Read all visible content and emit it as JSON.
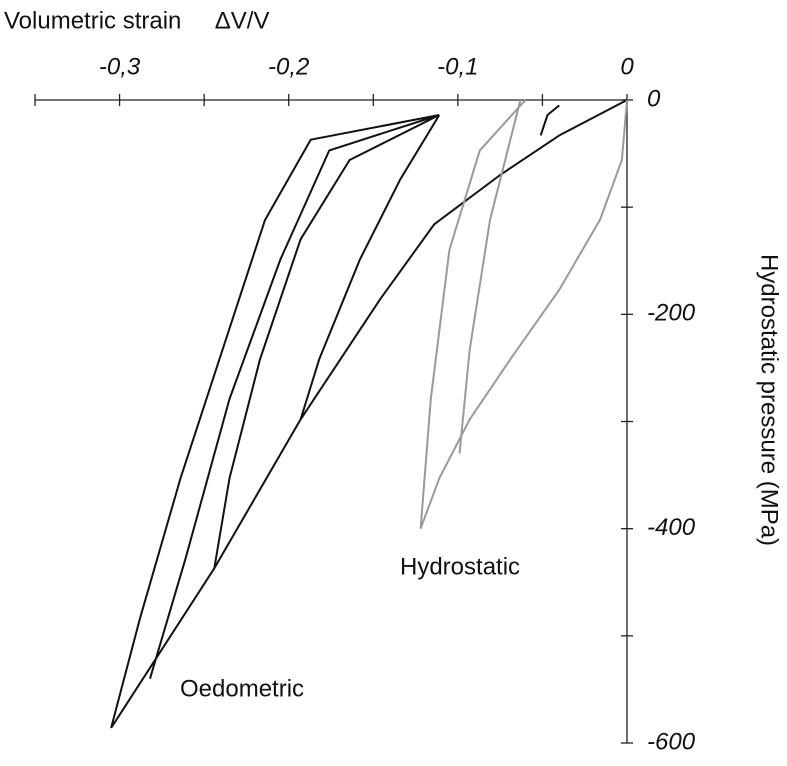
{
  "chart_data": {
    "type": "line",
    "xlabel": "Volumetric strain     ΔV/V",
    "ylabel": "Hydrostatic pressure (MPa)",
    "xlim": [
      -0.35,
      0
    ],
    "ylim": [
      -600,
      0
    ],
    "xticks": [
      {
        "value": -0.3,
        "label": "-0,3"
      },
      {
        "value": -0.2,
        "label": "-0,2"
      },
      {
        "value": -0.1,
        "label": "-0,1"
      },
      0
    ],
    "xminorticks": [
      -0.35,
      -0.25,
      -0.15,
      -0.05
    ],
    "yticks": [
      0,
      -200,
      -400,
      -600
    ],
    "yminorticks": [
      -100,
      -300,
      -500
    ],
    "grid": false,
    "series": [
      {
        "name": "Oedometric",
        "color": "#111111",
        "x": [
          0,
          -0.04,
          -0.075,
          -0.114,
          -0.146,
          -0.193,
          -0.244,
          -0.305,
          null,
          -0.193,
          -0.182,
          -0.158,
          -0.134,
          -0.111,
          null,
          -0.244,
          -0.235,
          -0.217,
          -0.193,
          -0.164,
          -0.111,
          null,
          -0.305,
          -0.288,
          -0.264,
          -0.241,
          -0.214,
          -0.187,
          -0.111,
          null,
          -0.282,
          -0.261,
          -0.235,
          -0.205,
          -0.176,
          -0.111,
          null,
          -0.051,
          -0.047,
          -0.04
        ],
        "y": [
          0,
          -33,
          -70,
          -116,
          -186,
          -298,
          -437,
          -586,
          null,
          -298,
          -242,
          -149,
          -74,
          -14,
          null,
          -437,
          -353,
          -242,
          -130,
          -56,
          -14,
          null,
          -586,
          -484,
          -353,
          -242,
          -112,
          -37,
          -14,
          null,
          -540,
          -428,
          -279,
          -149,
          -47,
          -14,
          null,
          -33,
          -14,
          -5
        ]
      },
      {
        "name": "Hydrostatic",
        "color": "#9a9a9a",
        "x": [
          0,
          -0.003,
          -0.016,
          -0.04,
          -0.069,
          -0.093,
          -0.111,
          -0.122,
          null,
          -0.122,
          -0.116,
          -0.105,
          -0.087,
          -0.06,
          null,
          -0.099,
          -0.093,
          -0.081,
          -0.063
        ],
        "y": [
          0,
          -56,
          -112,
          -177,
          -242,
          -298,
          -353,
          -400,
          null,
          -400,
          -279,
          -140,
          -47,
          0,
          null,
          -330,
          -233,
          -112,
          0
        ]
      }
    ]
  }
}
